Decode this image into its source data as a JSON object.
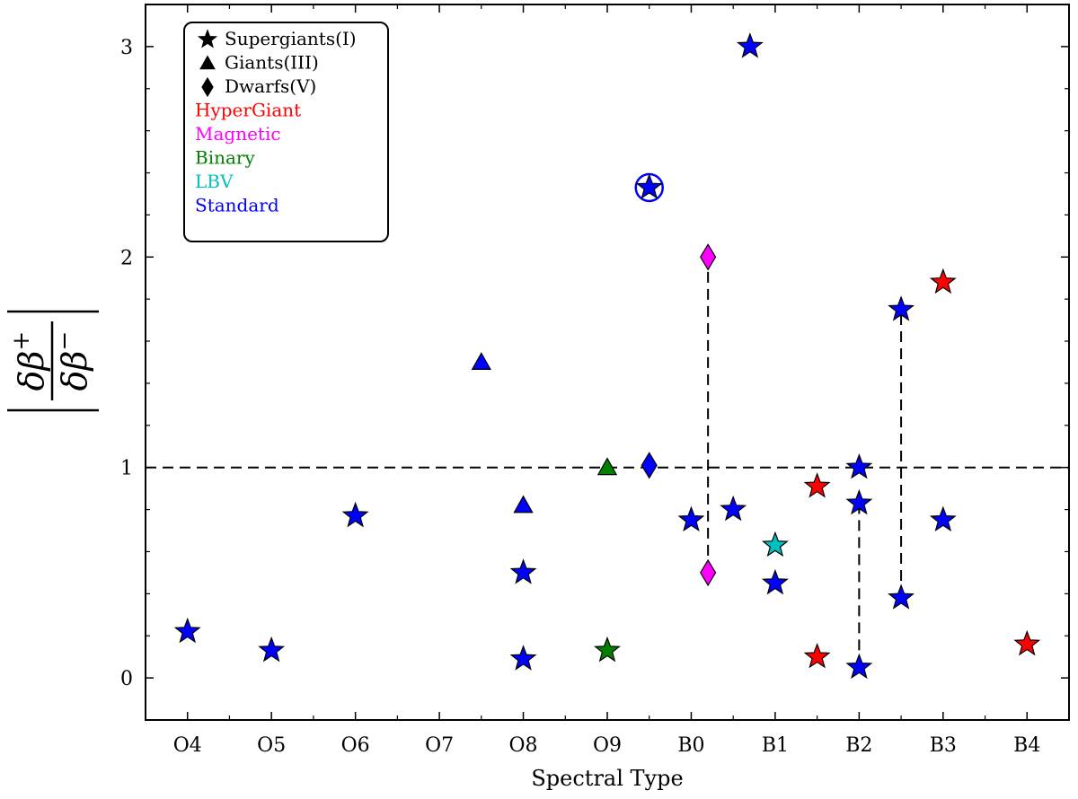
{
  "chart_data": {
    "type": "scatter",
    "title": "",
    "xlabel": "Spectral Type",
    "ylabel": "|δβ+ / δβ−|",
    "ylabel_parts": {
      "num_sym": "δβ",
      "num_sup": "+",
      "den_sym": "δβ",
      "den_sup": "−"
    },
    "x_categories": [
      "O4",
      "O5",
      "O6",
      "O7",
      "O8",
      "O9",
      "B0",
      "B1",
      "B2",
      "B3",
      "B4"
    ],
    "xlim": [
      -0.5,
      10.5
    ],
    "ylim": [
      -0.2,
      3.2
    ],
    "y_ticks": [
      0,
      1,
      2,
      3
    ],
    "reference_line": {
      "y": 1,
      "style": "dashed"
    },
    "colors": {
      "HyperGiant": "#ff0000",
      "Magnetic": "#ff00ff",
      "Binary": "#008000",
      "LBV": "#00bfbf",
      "Standard": "#0000ff"
    },
    "legend": {
      "position": "top-left",
      "markers": [
        {
          "shape": "star",
          "label": "Supergiants(I)"
        },
        {
          "shape": "triangle",
          "label": "Giants(III)"
        },
        {
          "shape": "diamond",
          "label": "Dwarfs(V)"
        }
      ],
      "categories": [
        {
          "label": "HyperGiant",
          "color": "#ff0000"
        },
        {
          "label": "Magnetic",
          "color": "#ff00ff"
        },
        {
          "label": "Binary",
          "color": "#008000"
        },
        {
          "label": "LBV",
          "color": "#00bfbf"
        },
        {
          "label": "Standard",
          "color": "#0000ff"
        }
      ]
    },
    "points": [
      {
        "x": 0,
        "y": 0.22,
        "shape": "star",
        "category": "Standard"
      },
      {
        "x": 1,
        "y": 0.13,
        "shape": "star",
        "category": "Standard"
      },
      {
        "x": 2,
        "y": 0.77,
        "shape": "star",
        "category": "Standard"
      },
      {
        "x": 3.5,
        "y": 1.5,
        "shape": "triangle",
        "category": "Standard"
      },
      {
        "x": 4,
        "y": 0.82,
        "shape": "triangle",
        "category": "Standard"
      },
      {
        "x": 4,
        "y": 0.5,
        "shape": "star",
        "category": "Standard"
      },
      {
        "x": 4,
        "y": 0.09,
        "shape": "star",
        "category": "Standard"
      },
      {
        "x": 5,
        "y": 1.0,
        "shape": "triangle",
        "category": "Binary"
      },
      {
        "x": 5,
        "y": 0.13,
        "shape": "star",
        "category": "Binary"
      },
      {
        "x": 5.5,
        "y": 2.33,
        "shape": "star",
        "category": "Standard",
        "circled": true
      },
      {
        "x": 5.5,
        "y": 1.01,
        "shape": "diamond",
        "category": "Standard"
      },
      {
        "x": 6,
        "y": 0.75,
        "shape": "star",
        "category": "Standard"
      },
      {
        "x": 6.2,
        "y": 2.0,
        "shape": "diamond",
        "category": "Magnetic"
      },
      {
        "x": 6.2,
        "y": 0.5,
        "shape": "diamond",
        "category": "Magnetic"
      },
      {
        "x": 6.5,
        "y": 0.8,
        "shape": "star",
        "category": "Standard"
      },
      {
        "x": 6.7,
        "y": 3.0,
        "shape": "star",
        "category": "Standard"
      },
      {
        "x": 7,
        "y": 0.63,
        "shape": "star",
        "category": "LBV"
      },
      {
        "x": 7,
        "y": 0.45,
        "shape": "star",
        "category": "Standard"
      },
      {
        "x": 7.5,
        "y": 0.91,
        "shape": "star",
        "category": "HyperGiant"
      },
      {
        "x": 7.5,
        "y": 0.1,
        "shape": "star",
        "category": "HyperGiant"
      },
      {
        "x": 8,
        "y": 1.0,
        "shape": "star",
        "category": "Standard"
      },
      {
        "x": 8,
        "y": 0.83,
        "shape": "star",
        "category": "Standard"
      },
      {
        "x": 8,
        "y": 0.05,
        "shape": "star",
        "category": "Standard"
      },
      {
        "x": 8.5,
        "y": 1.75,
        "shape": "star",
        "category": "Standard"
      },
      {
        "x": 8.5,
        "y": 0.38,
        "shape": "star",
        "category": "Standard"
      },
      {
        "x": 9,
        "y": 1.88,
        "shape": "star",
        "category": "HyperGiant"
      },
      {
        "x": 9,
        "y": 0.75,
        "shape": "star",
        "category": "Standard"
      },
      {
        "x": 10,
        "y": 0.16,
        "shape": "star",
        "category": "HyperGiant"
      }
    ],
    "connectors": [
      {
        "x": 6.2,
        "y1": 0.5,
        "y2": 2.0
      },
      {
        "x": 8,
        "y1": 0.05,
        "y2": 0.83
      },
      {
        "x": 8.5,
        "y1": 0.38,
        "y2": 1.75
      }
    ]
  }
}
